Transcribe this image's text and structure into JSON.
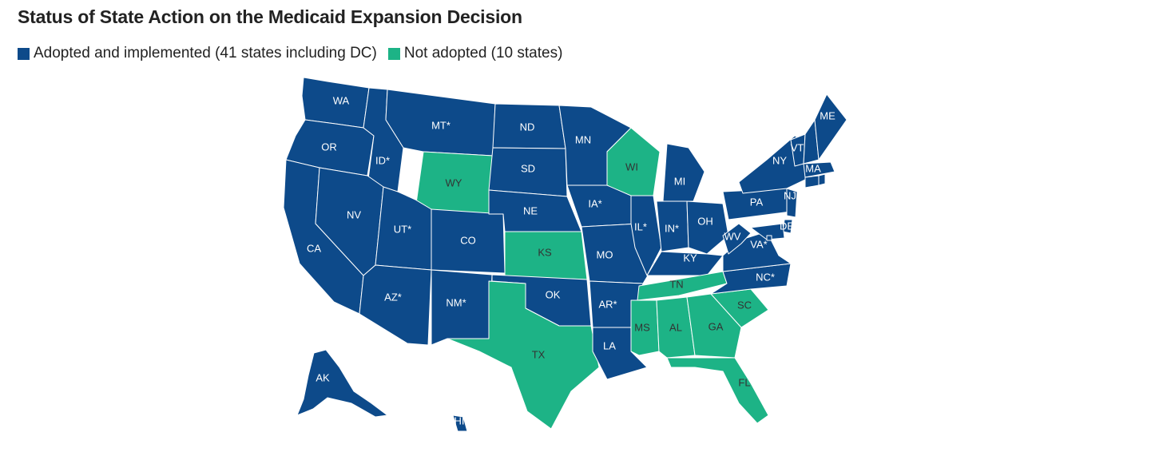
{
  "title": "Status of State Action on the Medicaid Expansion Decision",
  "legend": [
    {
      "key": "adopted",
      "label": "Adopted and implemented (41 states including DC)",
      "color": "#0d4a8a"
    },
    {
      "key": "not",
      "label": "Not adopted (10 states)",
      "color": "#1db386"
    }
  ],
  "label_colors": {
    "adopted": "#ffffff",
    "not": "#333333"
  },
  "states": [
    {
      "id": "WA",
      "label": "WA",
      "status": "adopted"
    },
    {
      "id": "OR",
      "label": "OR",
      "status": "adopted"
    },
    {
      "id": "CA",
      "label": "CA",
      "status": "adopted"
    },
    {
      "id": "ID",
      "label": "ID*",
      "status": "adopted"
    },
    {
      "id": "NV",
      "label": "NV",
      "status": "adopted"
    },
    {
      "id": "MT",
      "label": "MT*",
      "status": "adopted"
    },
    {
      "id": "WY",
      "label": "WY",
      "status": "not"
    },
    {
      "id": "UT",
      "label": "UT*",
      "status": "adopted"
    },
    {
      "id": "AZ",
      "label": "AZ*",
      "status": "adopted"
    },
    {
      "id": "CO",
      "label": "CO",
      "status": "adopted"
    },
    {
      "id": "NM",
      "label": "NM*",
      "status": "adopted"
    },
    {
      "id": "ND",
      "label": "ND",
      "status": "adopted"
    },
    {
      "id": "SD",
      "label": "SD",
      "status": "adopted"
    },
    {
      "id": "NE",
      "label": "NE",
      "status": "adopted"
    },
    {
      "id": "KS",
      "label": "KS",
      "status": "not"
    },
    {
      "id": "OK",
      "label": "OK",
      "status": "adopted"
    },
    {
      "id": "TX",
      "label": "TX",
      "status": "not"
    },
    {
      "id": "MN",
      "label": "MN",
      "status": "adopted"
    },
    {
      "id": "IA",
      "label": "IA*",
      "status": "adopted"
    },
    {
      "id": "MO",
      "label": "MO",
      "status": "adopted"
    },
    {
      "id": "AR",
      "label": "AR*",
      "status": "adopted"
    },
    {
      "id": "LA",
      "label": "LA",
      "status": "adopted"
    },
    {
      "id": "WI",
      "label": "WI",
      "status": "not"
    },
    {
      "id": "IL",
      "label": "IL*",
      "status": "adopted"
    },
    {
      "id": "MI",
      "label": "MI",
      "status": "adopted"
    },
    {
      "id": "IN",
      "label": "IN*",
      "status": "adopted"
    },
    {
      "id": "OH",
      "label": "OH",
      "status": "adopted"
    },
    {
      "id": "KY",
      "label": "KY",
      "status": "adopted"
    },
    {
      "id": "TN",
      "label": "TN",
      "status": "not"
    },
    {
      "id": "MS",
      "label": "MS",
      "status": "not"
    },
    {
      "id": "AL",
      "label": "AL",
      "status": "not"
    },
    {
      "id": "GA",
      "label": "GA",
      "status": "not"
    },
    {
      "id": "FL",
      "label": "FL",
      "status": "not"
    },
    {
      "id": "SC",
      "label": "SC",
      "status": "not"
    },
    {
      "id": "NC",
      "label": "NC*",
      "status": "adopted"
    },
    {
      "id": "VA",
      "label": "VA*",
      "status": "adopted"
    },
    {
      "id": "WV",
      "label": "WV",
      "status": "adopted"
    },
    {
      "id": "PA",
      "label": "PA",
      "status": "adopted"
    },
    {
      "id": "NY",
      "label": "NY",
      "status": "adopted"
    },
    {
      "id": "VT",
      "label": "VT",
      "status": "adopted"
    },
    {
      "id": "NH",
      "label": "",
      "status": "adopted"
    },
    {
      "id": "ME",
      "label": "ME",
      "status": "adopted"
    },
    {
      "id": "MA",
      "label": "MA",
      "status": "adopted"
    },
    {
      "id": "CT",
      "label": "",
      "status": "adopted"
    },
    {
      "id": "RI",
      "label": "",
      "status": "adopted"
    },
    {
      "id": "NJ",
      "label": "NJ",
      "status": "adopted"
    },
    {
      "id": "DE",
      "label": "DE",
      "status": "adopted"
    },
    {
      "id": "MD",
      "label": "",
      "status": "adopted"
    },
    {
      "id": "DC",
      "label": "",
      "status": "adopted"
    },
    {
      "id": "AK",
      "label": "AK",
      "status": "adopted"
    },
    {
      "id": "HI",
      "label": "HI",
      "status": "adopted"
    }
  ]
}
